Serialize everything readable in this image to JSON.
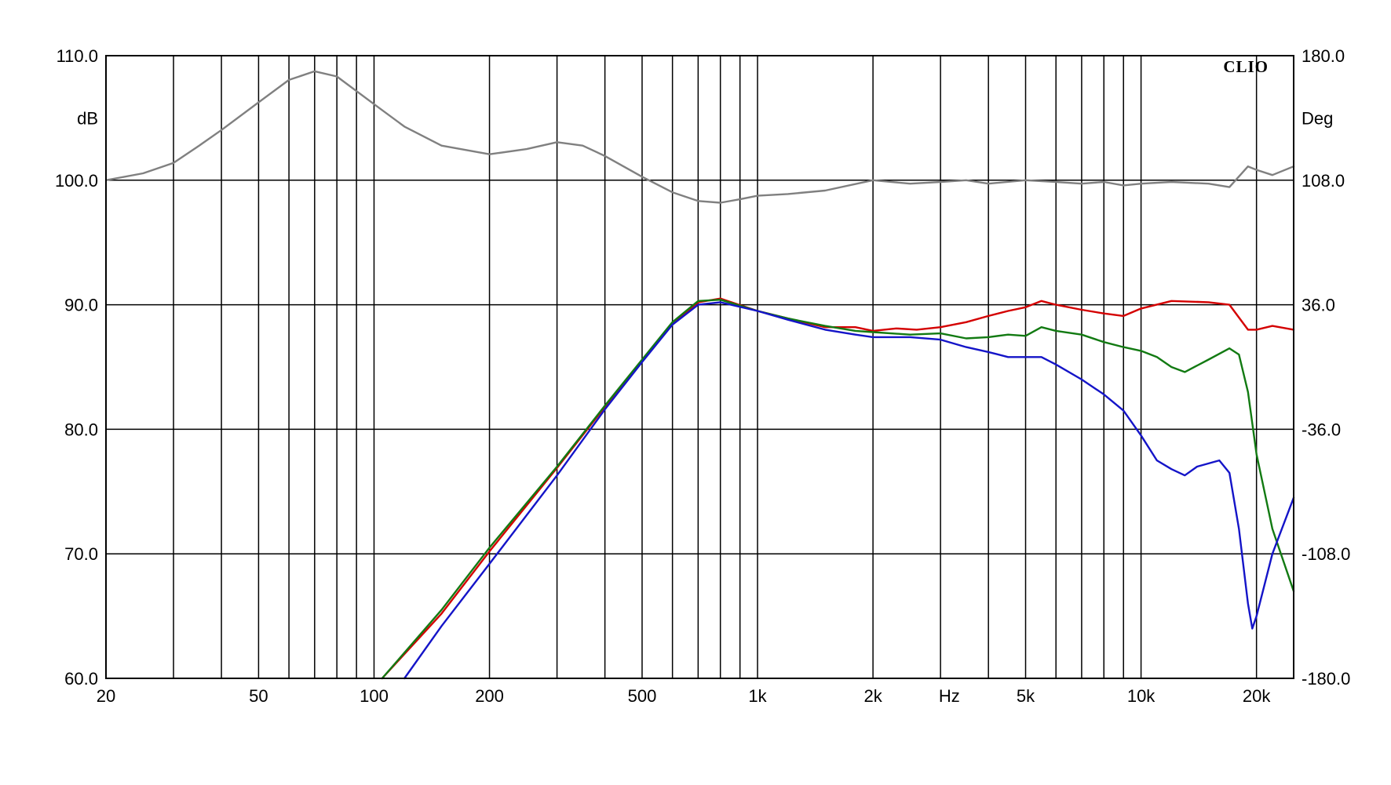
{
  "chart_data": {
    "type": "line",
    "brand": "CLIO",
    "x_unit_label": "Hz",
    "y_left_unit": "dB",
    "y_right_unit": "Deg",
    "xscale": "log",
    "xlim": [
      20,
      25000
    ],
    "ylim": [
      60,
      110
    ],
    "y2lim": [
      -180,
      180
    ],
    "grid": true,
    "x_ticks": [
      {
        "value": 20,
        "label": "20"
      },
      {
        "value": 50,
        "label": "50"
      },
      {
        "value": 100,
        "label": "100"
      },
      {
        "value": 200,
        "label": "200"
      },
      {
        "value": 500,
        "label": "500"
      },
      {
        "value": 1000,
        "label": "1k"
      },
      {
        "value": 2000,
        "label": "2k"
      },
      {
        "value": 5000,
        "label": "5k"
      },
      {
        "value": 10000,
        "label": "10k"
      },
      {
        "value": 20000,
        "label": "20k"
      }
    ],
    "y_left_ticks": [
      "60.0",
      "70.0",
      "80.0",
      "90.0",
      "100.0",
      "110.0"
    ],
    "y_right_ticks": [
      "-180.0",
      "-108.0",
      "-36.0",
      "36.0",
      "108.0",
      "180.0"
    ],
    "series": [
      {
        "color": "#808080",
        "axis": "right",
        "points": [
          [
            20,
            108
          ],
          [
            25,
            112
          ],
          [
            30,
            118
          ],
          [
            35,
            128
          ],
          [
            40,
            137
          ],
          [
            50,
            153
          ],
          [
            60,
            166
          ],
          [
            70,
            171
          ],
          [
            80,
            168
          ],
          [
            100,
            152
          ],
          [
            120,
            139
          ],
          [
            150,
            128
          ],
          [
            200,
            123
          ],
          [
            250,
            126
          ],
          [
            300,
            130
          ],
          [
            350,
            128
          ],
          [
            400,
            122
          ],
          [
            500,
            110
          ],
          [
            600,
            101
          ],
          [
            700,
            96
          ],
          [
            800,
            95
          ],
          [
            900,
            97
          ],
          [
            1000,
            99
          ],
          [
            1200,
            100
          ],
          [
            1500,
            102
          ],
          [
            2000,
            108
          ],
          [
            2500,
            106
          ],
          [
            3000,
            107
          ],
          [
            3500,
            108
          ],
          [
            4000,
            106
          ],
          [
            5000,
            108
          ],
          [
            6000,
            107
          ],
          [
            7000,
            106
          ],
          [
            8000,
            107
          ],
          [
            9000,
            105
          ],
          [
            10000,
            106
          ],
          [
            12000,
            107
          ],
          [
            15000,
            106
          ],
          [
            17000,
            104
          ],
          [
            19000,
            116
          ],
          [
            20000,
            114
          ],
          [
            22000,
            111
          ],
          [
            25000,
            116
          ]
        ]
      },
      {
        "color": "#d40000",
        "axis": "left",
        "points": [
          [
            105,
            60
          ],
          [
            150,
            65.2
          ],
          [
            200,
            70.2
          ],
          [
            300,
            76.9
          ],
          [
            400,
            81.8
          ],
          [
            500,
            85.5
          ],
          [
            600,
            88.5
          ],
          [
            700,
            90.2
          ],
          [
            800,
            90.5
          ],
          [
            1000,
            89.5
          ],
          [
            1200,
            88.9
          ],
          [
            1500,
            88.2
          ],
          [
            1800,
            88.2
          ],
          [
            2000,
            87.9
          ],
          [
            2300,
            88.1
          ],
          [
            2600,
            88.0
          ],
          [
            3000,
            88.2
          ],
          [
            3500,
            88.6
          ],
          [
            4000,
            89.1
          ],
          [
            4500,
            89.5
          ],
          [
            5000,
            89.8
          ],
          [
            5500,
            90.3
          ],
          [
            6000,
            90.0
          ],
          [
            7000,
            89.6
          ],
          [
            8000,
            89.3
          ],
          [
            9000,
            89.1
          ],
          [
            10000,
            89.7
          ],
          [
            12000,
            90.3
          ],
          [
            15000,
            90.2
          ],
          [
            17000,
            90.0
          ],
          [
            19000,
            88.0
          ],
          [
            20000,
            88.0
          ],
          [
            22000,
            88.3
          ],
          [
            25000,
            88.0
          ]
        ]
      },
      {
        "color": "#127a12",
        "axis": "left",
        "points": [
          [
            105,
            60
          ],
          [
            150,
            65.5
          ],
          [
            200,
            70.5
          ],
          [
            300,
            77.0
          ],
          [
            400,
            81.9
          ],
          [
            500,
            85.6
          ],
          [
            600,
            88.6
          ],
          [
            700,
            90.3
          ],
          [
            800,
            90.4
          ],
          [
            1000,
            89.5
          ],
          [
            1200,
            88.9
          ],
          [
            1500,
            88.3
          ],
          [
            1800,
            87.9
          ],
          [
            2000,
            87.8
          ],
          [
            2500,
            87.6
          ],
          [
            3000,
            87.7
          ],
          [
            3500,
            87.3
          ],
          [
            4000,
            87.4
          ],
          [
            4500,
            87.6
          ],
          [
            5000,
            87.5
          ],
          [
            5500,
            88.2
          ],
          [
            6000,
            87.9
          ],
          [
            7000,
            87.6
          ],
          [
            8000,
            87.0
          ],
          [
            9000,
            86.6
          ],
          [
            10000,
            86.3
          ],
          [
            11000,
            85.8
          ],
          [
            12000,
            85.0
          ],
          [
            13000,
            84.6
          ],
          [
            15000,
            85.6
          ],
          [
            17000,
            86.5
          ],
          [
            18000,
            86.0
          ],
          [
            19000,
            83.0
          ],
          [
            20000,
            78.0
          ],
          [
            22000,
            72.0
          ],
          [
            25000,
            67.0
          ]
        ]
      },
      {
        "color": "#1414c8",
        "axis": "left",
        "points": [
          [
            120,
            60
          ],
          [
            150,
            64.2
          ],
          [
            200,
            69.2
          ],
          [
            300,
            76.3
          ],
          [
            400,
            81.6
          ],
          [
            500,
            85.4
          ],
          [
            600,
            88.4
          ],
          [
            700,
            90.0
          ],
          [
            800,
            90.2
          ],
          [
            1000,
            89.5
          ],
          [
            1200,
            88.8
          ],
          [
            1500,
            88.0
          ],
          [
            1800,
            87.6
          ],
          [
            2000,
            87.4
          ],
          [
            2500,
            87.4
          ],
          [
            3000,
            87.2
          ],
          [
            3500,
            86.6
          ],
          [
            4000,
            86.2
          ],
          [
            4500,
            85.8
          ],
          [
            5000,
            85.8
          ],
          [
            5500,
            85.8
          ],
          [
            6000,
            85.2
          ],
          [
            7000,
            84.0
          ],
          [
            8000,
            82.8
          ],
          [
            9000,
            81.5
          ],
          [
            10000,
            79.5
          ],
          [
            11000,
            77.5
          ],
          [
            12000,
            76.8
          ],
          [
            13000,
            76.3
          ],
          [
            14000,
            77.0
          ],
          [
            16000,
            77.5
          ],
          [
            17000,
            76.5
          ],
          [
            18000,
            72.0
          ],
          [
            19000,
            66.0
          ],
          [
            19500,
            64.0
          ],
          [
            20000,
            65.0
          ],
          [
            22000,
            70.0
          ],
          [
            25000,
            74.5
          ]
        ]
      }
    ]
  }
}
